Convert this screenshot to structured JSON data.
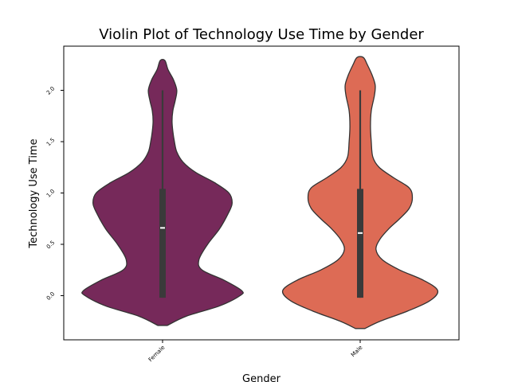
{
  "chart_data": {
    "type": "violin",
    "title": "Violin Plot of Technology Use Time by Gender",
    "xlabel": "Gender",
    "ylabel": "Technology Use Time",
    "categories": [
      "Female",
      "Male"
    ],
    "ylim": [
      -0.43,
      2.43
    ],
    "yticks": [
      0.0,
      0.5,
      1.0,
      1.5,
      2.0
    ],
    "ytick_labels": [
      "0.0",
      "0.5",
      "1.0",
      "1.5",
      "2.0"
    ],
    "grid": false,
    "legend": "none",
    "colors": {
      "Female": "#76295a",
      "Male": "#dd6b55",
      "box": "#3a3a3a",
      "median": "#ffffff",
      "outline": "#333333"
    },
    "series": [
      {
        "category": "Female",
        "kde_extent": [
          -0.29,
          2.29
        ],
        "density": [
          [
            -0.29,
            0.06
          ],
          [
            -0.2,
            0.3
          ],
          [
            -0.1,
            0.72
          ],
          [
            0.0,
            0.98
          ],
          [
            0.05,
            1.0
          ],
          [
            0.15,
            0.78
          ],
          [
            0.25,
            0.5
          ],
          [
            0.35,
            0.46
          ],
          [
            0.5,
            0.57
          ],
          [
            0.65,
            0.72
          ],
          [
            0.8,
            0.83
          ],
          [
            0.9,
            0.88
          ],
          [
            1.0,
            0.84
          ],
          [
            1.1,
            0.66
          ],
          [
            1.2,
            0.42
          ],
          [
            1.3,
            0.26
          ],
          [
            1.4,
            0.18
          ],
          [
            1.5,
            0.15
          ],
          [
            1.6,
            0.13
          ],
          [
            1.7,
            0.12
          ],
          [
            1.8,
            0.13
          ],
          [
            1.9,
            0.16
          ],
          [
            2.0,
            0.18
          ],
          [
            2.1,
            0.14
          ],
          [
            2.2,
            0.07
          ],
          [
            2.29,
            0.03
          ]
        ],
        "box": {
          "q1": -0.02,
          "median": 0.66,
          "q3": 1.04,
          "whisker_low": -0.02,
          "whisker_high": 2.0
        }
      },
      {
        "category": "Male",
        "kde_extent": [
          -0.32,
          2.32
        ],
        "density": [
          [
            -0.32,
            0.06
          ],
          [
            -0.25,
            0.25
          ],
          [
            -0.15,
            0.6
          ],
          [
            -0.05,
            0.88
          ],
          [
            0.05,
            0.98
          ],
          [
            0.15,
            0.8
          ],
          [
            0.25,
            0.5
          ],
          [
            0.35,
            0.28
          ],
          [
            0.45,
            0.2
          ],
          [
            0.55,
            0.25
          ],
          [
            0.65,
            0.36
          ],
          [
            0.75,
            0.5
          ],
          [
            0.85,
            0.62
          ],
          [
            0.95,
            0.66
          ],
          [
            1.05,
            0.62
          ],
          [
            1.15,
            0.42
          ],
          [
            1.25,
            0.24
          ],
          [
            1.35,
            0.16
          ],
          [
            1.5,
            0.14
          ],
          [
            1.65,
            0.13
          ],
          [
            1.8,
            0.14
          ],
          [
            1.95,
            0.18
          ],
          [
            2.05,
            0.19
          ],
          [
            2.15,
            0.15
          ],
          [
            2.25,
            0.09
          ],
          [
            2.32,
            0.04
          ]
        ],
        "box": {
          "q1": -0.02,
          "median": 0.61,
          "q3": 1.04,
          "whisker_low": -0.02,
          "whisker_high": 2.0
        }
      }
    ]
  }
}
